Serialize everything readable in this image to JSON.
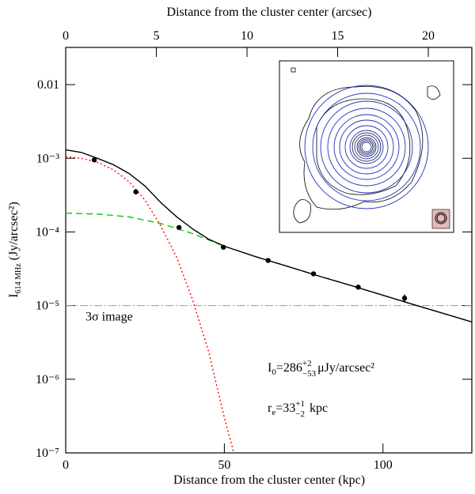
{
  "chart_data": {
    "type": "scatter",
    "xlabel": "Distance from the cluster center (kpc)",
    "x2label": "Distance from the cluster center (arcsec)",
    "ylabel": {
      "main": "I",
      "sub": "614 MHz",
      "unit": " (Jy/arcsec²)"
    },
    "xlim": [
      0,
      128
    ],
    "xticks": [
      0,
      50,
      100
    ],
    "x2lim": [
      0,
      22.4
    ],
    "x2ticks": [
      0,
      5,
      10,
      15,
      20
    ],
    "ylim": [
      1e-07,
      0.032
    ],
    "log_y": true,
    "yticks": [
      {
        "value": 1e-07,
        "label": "10⁻⁷"
      },
      {
        "value": 1e-06,
        "label": "10⁻⁶"
      },
      {
        "value": 1e-05,
        "label": "10⁻⁵"
      },
      {
        "value": 0.0001,
        "label": "10⁻⁴"
      },
      {
        "value": 0.001,
        "label": "10⁻³"
      },
      0.01
    ],
    "points": {
      "color": "#000",
      "x": [
        9.0,
        22.1,
        35.7,
        49.7,
        63.8,
        78.1,
        92.2,
        106.8
      ],
      "values": [
        0.00095,
        0.00035,
        0.000115,
        6.2e-05,
        4.1e-05,
        2.7e-05,
        1.78e-05,
        1.26e-05
      ],
      "errors": [
        5e-05,
        2e-05,
        6e-06,
        3e-06,
        2e-06,
        1.5e-06,
        1.3e-06,
        1.5e-06
      ]
    },
    "curves": [
      {
        "color": "#ff0000",
        "dash": "2 3",
        "x": [
          0,
          5,
          10,
          15,
          20,
          25,
          30,
          35,
          40,
          45,
          50,
          53
        ],
        "values": [
          0.00105,
          0.001,
          0.00088,
          0.0007,
          0.00048,
          0.00027,
          0.00012,
          4.5e-05,
          1.2e-05,
          2.4e-06,
          3e-07,
          1e-07
        ]
      },
      {
        "color": "#00cc00",
        "dash": "8 5",
        "x": [
          0,
          10,
          20,
          30,
          40,
          50,
          60,
          70,
          80,
          90,
          100,
          110,
          120,
          128
        ],
        "values": [
          0.00018,
          0.000175,
          0.00016,
          0.00013,
          9.5e-05,
          6.4e-05,
          4.6e-05,
          3.4e-05,
          2.5e-05,
          1.87e-05,
          1.38e-05,
          1.02e-05,
          7.6e-06,
          6e-06
        ]
      },
      {
        "color": "#000000",
        "dash": "none",
        "x": [
          0,
          5,
          10,
          15,
          20,
          25,
          30,
          35,
          40,
          45,
          50,
          60,
          70,
          80,
          90,
          100,
          110,
          120,
          128
        ],
        "values": [
          0.0013,
          0.0012,
          0.001,
          0.00082,
          0.00062,
          0.00042,
          0.00025,
          0.00016,
          0.00011,
          8e-05,
          6.4e-05,
          4.6e-05,
          3.4e-05,
          2.5e-05,
          1.87e-05,
          1.38e-05,
          1.02e-05,
          7.6e-06,
          6e-06
        ]
      }
    ],
    "threshold": {
      "value": 1e-05,
      "label": "3σ image",
      "color": "#999999"
    },
    "annotations": [
      {
        "main": "I",
        "sub": "0",
        "text": "=286",
        "upper": "+2",
        "lower": "−53",
        "unit": "μJy/arcsec²"
      },
      {
        "main": "r",
        "sub": "e",
        "text": "=33",
        "upper": "+1",
        "lower": "−2",
        "unit": " kpc"
      }
    ]
  }
}
